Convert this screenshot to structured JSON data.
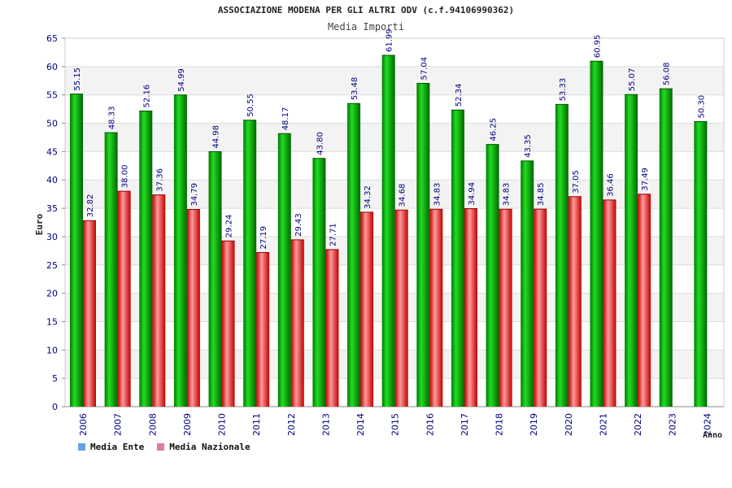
{
  "chart_data": {
    "type": "bar",
    "title": "ASSOCIAZIONE MODENA PER GLI ALTRI ODV (c.f.94106990362)",
    "subtitle": "Media Importi",
    "ylabel": "Euro",
    "xlabel": "Anno",
    "ylim": [
      0,
      65
    ],
    "ytick_step": 5,
    "grid": true,
    "categories": [
      "2006",
      "2007",
      "2008",
      "2009",
      "2010",
      "2011",
      "2012",
      "2013",
      "2014",
      "2015",
      "2016",
      "2017",
      "2018",
      "2019",
      "2020",
      "2021",
      "2022",
      "2023",
      "2024"
    ],
    "series": [
      {
        "name": "Media Ente",
        "color": "#00aa00",
        "legend_color": "#66a3e0",
        "values": [
          55.15,
          48.33,
          52.16,
          54.99,
          44.98,
          50.55,
          48.17,
          43.8,
          53.48,
          61.99,
          57.04,
          52.34,
          46.25,
          43.35,
          53.33,
          60.95,
          55.07,
          56.08,
          50.3
        ],
        "labels": [
          "55.15",
          "48.33",
          "52.16",
          "54.99",
          "44.98",
          "50.55",
          "48.17",
          "43.80",
          "53.48",
          "61.99",
          "57.04",
          "52.34",
          "46.25",
          "43.35",
          "53.33",
          "60.95",
          "55.07",
          "56.08",
          "50.30"
        ]
      },
      {
        "name": "Media Nazionale",
        "color": "#dd2222",
        "legend_color": "#e07aa8",
        "values": [
          32.82,
          38.0,
          37.36,
          34.79,
          29.24,
          27.19,
          29.43,
          27.71,
          34.32,
          34.68,
          34.83,
          34.94,
          34.83,
          34.85,
          37.05,
          36.46,
          37.49,
          null,
          null
        ],
        "labels": [
          "32.82",
          "38.00",
          "37.36",
          "34.79",
          "29.24",
          "27.19",
          "29.43",
          "27.71",
          "34.32",
          "34.68",
          "34.83",
          "34.94",
          "34.83",
          "34.85",
          "37.05",
          "36.46",
          "37.49",
          null,
          null
        ]
      }
    ],
    "label_color": "#000080",
    "tick_color": "#000080"
  }
}
